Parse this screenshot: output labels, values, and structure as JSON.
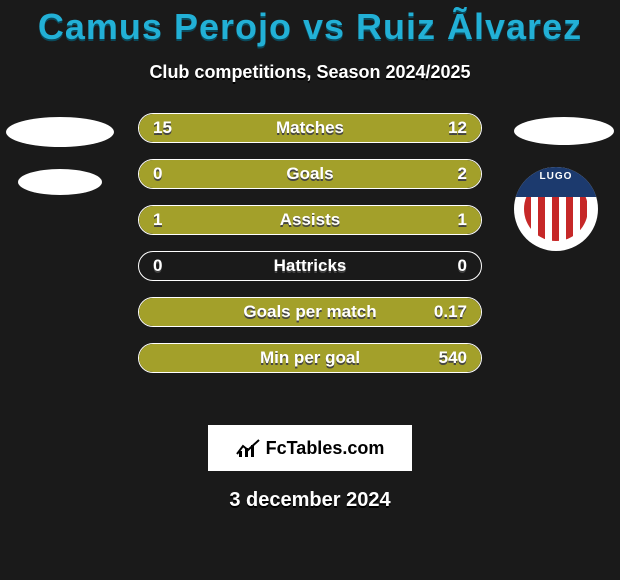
{
  "title": "Camus Perojo vs Ruiz Ãlvarez",
  "subtitle": "Club competitions, Season 2024/2025",
  "date": "3 december 2024",
  "attribution": "FcTables.com",
  "colors": {
    "bg": "#1a1a1a",
    "title": "#22b0d6",
    "left_fill": "#a3a02a",
    "right_fill": "#a3a02a",
    "border": "#ffffff",
    "text": "#ffffff"
  },
  "club_right_name": "LUGO",
  "rows": [
    {
      "metric": "Matches",
      "left": "15",
      "right": "12",
      "left_pct": 55.6,
      "right_pct": 44.4
    },
    {
      "metric": "Goals",
      "left": "0",
      "right": "2",
      "left_pct": 0,
      "right_pct": 100
    },
    {
      "metric": "Assists",
      "left": "1",
      "right": "1",
      "left_pct": 50,
      "right_pct": 50
    },
    {
      "metric": "Hattricks",
      "left": "0",
      "right": "0",
      "left_pct": 0,
      "right_pct": 0
    },
    {
      "metric": "Goals per match",
      "left": "",
      "right": "0.17",
      "left_pct": 0,
      "right_pct": 100
    },
    {
      "metric": "Min per goal",
      "left": "",
      "right": "540",
      "left_pct": 0,
      "right_pct": 100
    }
  ]
}
